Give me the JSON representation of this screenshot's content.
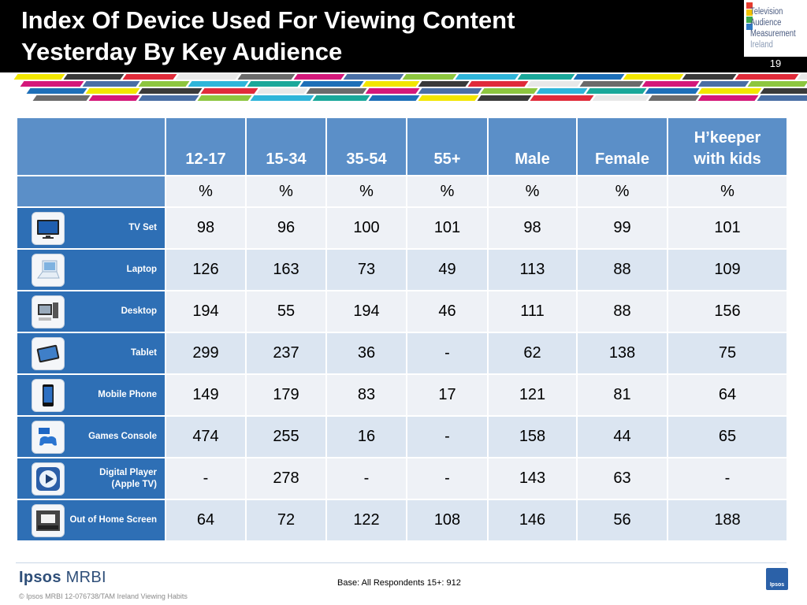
{
  "title_line1": "Index Of Device Used For Viewing Content",
  "title_line2": "Yesterday By Key Audience",
  "logo": {
    "line1": "Television",
    "line2": "Audience",
    "line3": "Measurement",
    "line4": "Ireland"
  },
  "page_number": "19",
  "table": {
    "columns": [
      "12-17",
      "15-34",
      "35-54",
      "55+",
      "Male",
      "Female",
      "H’keeper with kids"
    ],
    "column_lines": [
      [
        "12-17"
      ],
      [
        "15-34"
      ],
      [
        "35-54"
      ],
      [
        "55+"
      ],
      [
        "Male"
      ],
      [
        "Female"
      ],
      [
        "H’keeper",
        "with kids"
      ]
    ],
    "unit_row": [
      "%",
      "%",
      "%",
      "%",
      "%",
      "%",
      "%"
    ],
    "rows": [
      {
        "label": "TV Set",
        "label_lines": [
          "TV Set"
        ],
        "icon": "tv-icon",
        "values": [
          "98",
          "96",
          "100",
          "101",
          "98",
          "99",
          "101"
        ]
      },
      {
        "label": "Laptop",
        "label_lines": [
          "Laptop"
        ],
        "icon": "laptop-icon",
        "values": [
          "126",
          "163",
          "73",
          "49",
          "113",
          "88",
          "109"
        ]
      },
      {
        "label": "Desktop",
        "label_lines": [
          "Desktop"
        ],
        "icon": "desktop-icon",
        "values": [
          "194",
          "55",
          "194",
          "46",
          "111",
          "88",
          "156"
        ]
      },
      {
        "label": "Tablet",
        "label_lines": [
          "Tablet"
        ],
        "icon": "tablet-icon",
        "values": [
          "299",
          "237",
          "36",
          "-",
          "62",
          "138",
          "75"
        ]
      },
      {
        "label": "Mobile Phone",
        "label_lines": [
          "Mobile Phone"
        ],
        "icon": "mobile-phone-icon",
        "values": [
          "149",
          "179",
          "83",
          "17",
          "121",
          "81",
          "64"
        ]
      },
      {
        "label": "Games Console",
        "label_lines": [
          "Games Console"
        ],
        "icon": "games-console-icon",
        "values": [
          "474",
          "255",
          "16",
          "-",
          "158",
          "44",
          "65"
        ]
      },
      {
        "label": "Digital Player (Apple TV)",
        "label_lines": [
          "Digital Player",
          "(Apple TV)"
        ],
        "icon": "play-icon",
        "values": [
          "-",
          "278",
          "-",
          "-",
          "143",
          "63",
          "-"
        ]
      },
      {
        "label": "Out of Home Screen",
        "label_lines": [
          "Out of Home Screen"
        ],
        "icon": "cinema-screen-icon",
        "values": [
          "64",
          "72",
          "122",
          "108",
          "146",
          "56",
          "188"
        ]
      }
    ]
  },
  "footer": {
    "brand_bold": "Ipsos",
    "brand_light": "MRBI",
    "base": "Base:  All Respondents 15+:  912",
    "copyright": "© Ipsos MRBI   12-076738/TAM Ireland Viewing Habits",
    "ipsos_logo_text": "Ipsos"
  },
  "colors": {
    "header_bg": "#000000",
    "table_header": "#5b8fc8",
    "row_label_bg": "#2e6fb5",
    "alt_row_light": "#eef1f6",
    "alt_row_dark": "#dbe5f1"
  }
}
